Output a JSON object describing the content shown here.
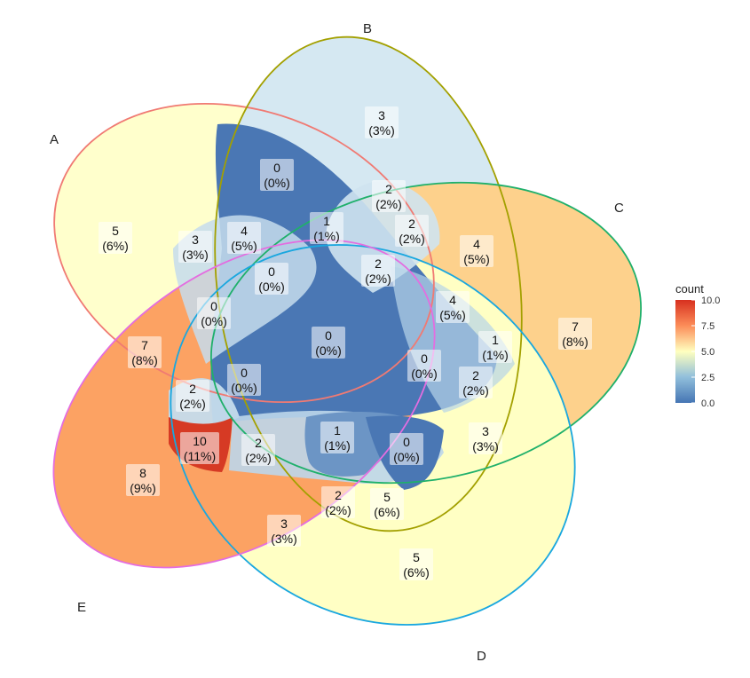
{
  "chart_data": {
    "type": "venn",
    "sets": [
      "A",
      "B",
      "C",
      "D",
      "E"
    ],
    "set_colors": {
      "A": "#f07a73",
      "B": "#a3a000",
      "C": "#1fb06b",
      "D": "#19a7df",
      "E": "#e46de0"
    },
    "regions": [
      {
        "sets": "A",
        "count": "5",
        "percent": "(6%)",
        "value": 5
      },
      {
        "sets": "B",
        "count": "3",
        "percent": "(3%)",
        "value": 3
      },
      {
        "sets": "C",
        "count": "7",
        "percent": "(8%)",
        "value": 7
      },
      {
        "sets": "D",
        "count": "5",
        "percent": "(6%)",
        "value": 5
      },
      {
        "sets": "E",
        "count": "8",
        "percent": "(9%)",
        "value": 8
      },
      {
        "sets": "AB",
        "count": "0",
        "percent": "(0%)",
        "value": 0
      },
      {
        "sets": "BE",
        "count": "3",
        "percent": "(3%)",
        "value": 3
      },
      {
        "sets": "BC",
        "count": "4",
        "percent": "(5%)",
        "value": 4
      },
      {
        "sets": "CD",
        "count": "3",
        "percent": "(3%)",
        "value": 3
      },
      {
        "sets": "DE",
        "count": "3",
        "percent": "(3%)",
        "value": 3
      },
      {
        "sets": "AE",
        "count": "7",
        "percent": "(8%)",
        "value": 7
      },
      {
        "sets": "AD",
        "count": "4",
        "percent": "(5%)",
        "value": 4
      },
      {
        "sets": "ABD",
        "count": "1",
        "percent": "(1%)",
        "value": 1
      },
      {
        "sets": "ABE",
        "count": "0",
        "percent": "(0%)",
        "value": 0
      },
      {
        "sets": "BCE",
        "count": "2",
        "percent": "(2%)",
        "value": 2
      },
      {
        "sets": "ABCE",
        "count": "2",
        "percent": "(2%)",
        "value": 2
      },
      {
        "sets": "BC2",
        "count": "2",
        "percent": "(2%)",
        "value": 2
      },
      {
        "sets": "CD2",
        "count": "4",
        "percent": "(5%)",
        "value": 4
      },
      {
        "sets": "ACD",
        "count": "1",
        "percent": "(1%)",
        "value": 1
      },
      {
        "sets": "AB2",
        "count": "0",
        "percent": "(0%)",
        "value": 0
      },
      {
        "sets": "ABDE",
        "count": "2",
        "percent": "(2%)",
        "value": 2
      },
      {
        "sets": "ABCDE",
        "count": "0",
        "percent": "(0%)",
        "value": 0
      },
      {
        "sets": "BCD",
        "count": "0",
        "percent": "(0%)",
        "value": 0
      },
      {
        "sets": "ACDE",
        "count": "2",
        "percent": "(2%)",
        "value": 2
      },
      {
        "sets": "ABCD",
        "count": "0",
        "percent": "(0%)",
        "value": 0
      },
      {
        "sets": "AE2",
        "count": "10",
        "percent": "(11%)",
        "value": 10
      },
      {
        "sets": "ACE",
        "count": "2",
        "percent": "(2%)",
        "value": 2
      },
      {
        "sets": "ACDE2",
        "count": "1",
        "percent": "(1%)",
        "value": 1
      },
      {
        "sets": "BCD2",
        "count": "0",
        "percent": "(0%)",
        "value": 0
      },
      {
        "sets": "CDE",
        "count": "2",
        "percent": "(2%)",
        "value": 2
      },
      {
        "sets": "BD",
        "count": "5",
        "percent": "(6%)",
        "value": 5
      }
    ],
    "legend": {
      "title": "count",
      "ticks": [
        "10.0",
        "7.5",
        "5.0",
        "2.5",
        "0.0"
      ],
      "range": [
        0,
        10
      ],
      "placement": "right"
    }
  }
}
